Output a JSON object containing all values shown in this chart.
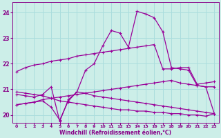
{
  "xlabel": "Windchill (Refroidissement éolien,°C)",
  "bg_color": "#cceee8",
  "grid_color": "#aadddd",
  "line_color": "#990099",
  "xlim": [
    -0.5,
    23.5
  ],
  "ylim": [
    19.7,
    24.4
  ],
  "yticks": [
    20,
    21,
    22,
    23,
    24
  ],
  "xticks": [
    0,
    1,
    2,
    3,
    4,
    5,
    6,
    7,
    8,
    9,
    10,
    11,
    12,
    13,
    14,
    15,
    16,
    17,
    18,
    19,
    20,
    21,
    22,
    23
  ],
  "lines": [
    {
      "x": [
        0,
        1,
        2,
        3,
        4,
        5,
        6,
        7,
        8,
        9,
        10,
        11,
        12,
        13,
        14,
        15,
        16,
        17,
        18,
        19,
        20,
        21,
        22,
        23
      ],
      "y": [
        21.7,
        21.85,
        21.95,
        22.0,
        22.1,
        22.15,
        22.2,
        22.3,
        22.35,
        22.4,
        22.45,
        22.5,
        22.55,
        22.6,
        22.65,
        22.7,
        22.75,
        21.8,
        21.8,
        21.85,
        21.85,
        21.2,
        21.25,
        21.3
      ]
    },
    {
      "x": [
        0,
        1,
        2,
        3,
        4,
        5,
        6,
        7,
        8,
        9,
        10,
        11,
        12,
        13,
        14,
        15,
        16,
        17,
        18,
        19,
        20,
        21,
        22,
        23
      ],
      "y": [
        20.4,
        20.45,
        20.5,
        20.55,
        20.3,
        19.8,
        20.55,
        20.9,
        21.75,
        22.0,
        22.7,
        23.3,
        23.2,
        22.65,
        24.05,
        23.95,
        23.8,
        23.25,
        21.85,
        21.8,
        21.75,
        21.15,
        21.1,
        20.05
      ]
    },
    {
      "x": [
        0,
        1,
        2,
        3,
        4,
        5,
        6,
        7,
        8,
        9,
        10,
        11,
        12,
        13,
        14,
        15,
        16,
        17,
        18,
        19,
        20,
        21,
        22,
        23
      ],
      "y": [
        20.9,
        20.85,
        20.8,
        20.75,
        20.65,
        20.55,
        20.5,
        20.45,
        20.4,
        20.35,
        20.3,
        20.25,
        20.2,
        20.2,
        20.15,
        20.15,
        20.1,
        20.1,
        20.05,
        20.05,
        20.0,
        20.0,
        19.95,
        20.05
      ]
    },
    {
      "x": [
        0,
        1,
        2,
        3,
        4,
        5,
        6,
        7,
        8,
        9,
        10,
        11,
        12,
        13,
        14,
        15,
        16,
        17,
        18,
        19,
        20,
        21,
        22,
        23
      ],
      "y": [
        20.4,
        20.45,
        20.5,
        20.6,
        20.65,
        20.7,
        20.75,
        20.8,
        20.85,
        20.9,
        20.95,
        21.0,
        21.05,
        21.1,
        21.15,
        21.2,
        21.25,
        21.3,
        21.35,
        21.25,
        21.2,
        21.15,
        21.1,
        21.1
      ]
    },
    {
      "x": [
        0,
        1,
        2,
        3,
        4,
        5,
        6,
        7,
        8,
        9,
        10,
        11,
        12,
        13,
        14,
        15,
        16,
        17,
        18,
        19,
        20,
        21,
        22,
        23
      ],
      "y": [
        20.8,
        20.75,
        20.7,
        20.8,
        21.1,
        19.75,
        20.6,
        20.9,
        20.85,
        20.75,
        20.7,
        20.65,
        20.6,
        20.55,
        20.5,
        20.45,
        20.4,
        20.35,
        20.3,
        20.25,
        20.2,
        20.15,
        20.1,
        20.05
      ]
    }
  ]
}
